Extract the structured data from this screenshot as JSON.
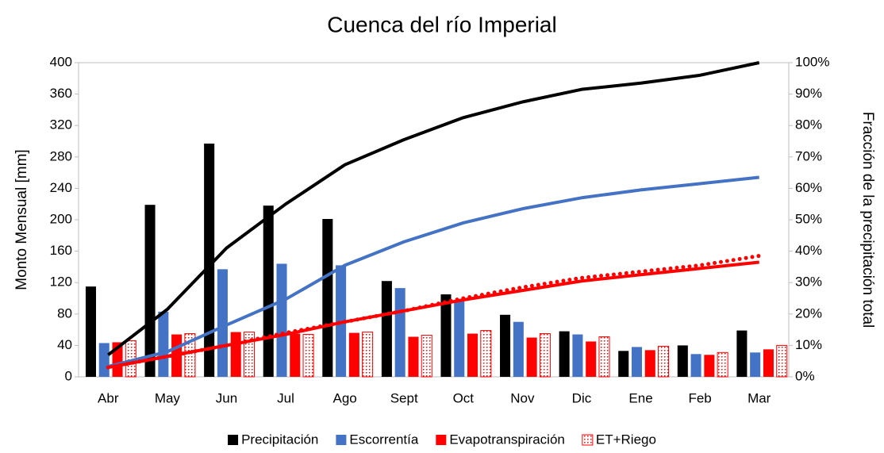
{
  "chart_data": {
    "type": "bar",
    "title": "Cuenca del río Imperial",
    "y_label": "Monto Mensual [mm]",
    "y2_label": "Fracción de la precipitación total",
    "categories": [
      "Abr",
      "May",
      "Jun",
      "Jul",
      "Ago",
      "Sept",
      "Oct",
      "Nov",
      "Dic",
      "Ene",
      "Feb",
      "Mar"
    ],
    "series": [
      {
        "name": "Precipitación",
        "color": "#000000",
        "values": [
          115,
          219,
          297,
          218,
          201,
          122,
          105,
          79,
          58,
          33,
          40,
          59
        ]
      },
      {
        "name": "Escorrentía",
        "color": "#4472c4",
        "values": [
          43,
          83,
          137,
          144,
          142,
          113,
          97,
          70,
          54,
          38,
          29,
          31
        ]
      },
      {
        "name": "Evapotranspiración",
        "color": "#ff0000",
        "values": [
          44,
          54,
          57,
          55,
          56,
          51,
          55,
          50,
          45,
          34,
          28,
          35
        ]
      },
      {
        "name": "ET+Riego",
        "color": "#ff0000",
        "pattern": "dots",
        "values": [
          46,
          55,
          57,
          54,
          57,
          53,
          59,
          55,
          51,
          39,
          31,
          40
        ]
      }
    ],
    "lines": [
      {
        "color": "#000000",
        "axis": "y2",
        "style": "solid",
        "values": [
          7,
          21.5,
          41,
          55,
          67.5,
          75.5,
          82.5,
          87.5,
          91.5,
          93.5,
          96,
          100
        ]
      },
      {
        "color": "#4472c4",
        "axis": "y2",
        "style": "solid",
        "values": [
          3.3,
          8,
          16.5,
          24.7,
          35.5,
          43,
          49,
          53.5,
          57,
          59.5,
          61.5,
          63.5
        ]
      },
      {
        "color": "#ff0000",
        "axis": "y2",
        "style": "solid",
        "values": [
          3,
          6.5,
          10,
          13.5,
          17.5,
          21,
          24.5,
          27.5,
          30.5,
          32.5,
          34.5,
          36.5
        ]
      },
      {
        "color": "#ff0000",
        "axis": "y2",
        "style": "dotted",
        "values": [
          3,
          6.5,
          10,
          14,
          17.5,
          21,
          25,
          28.5,
          31.5,
          33.5,
          35.5,
          38.5
        ]
      }
    ],
    "ylim": [
      0,
      400
    ],
    "yticks": [
      0,
      40,
      80,
      120,
      160,
      200,
      240,
      280,
      320,
      360,
      400
    ],
    "y2lim": [
      0,
      100
    ],
    "y2ticks": [
      {
        "value": 0,
        "label": "0%"
      },
      {
        "value": 10,
        "label": "10%"
      },
      {
        "value": 20,
        "label": "20%"
      },
      {
        "value": 30,
        "label": "30%"
      },
      {
        "value": 40,
        "label": "40%"
      },
      {
        "value": 50,
        "label": "50%"
      },
      {
        "value": 60,
        "label": "60%"
      },
      {
        "value": 70,
        "label": "70%"
      },
      {
        "value": 80,
        "label": "80%"
      },
      {
        "value": 90,
        "label": "90%"
      },
      {
        "value": 100,
        "label": "100%"
      }
    ],
    "grid": false,
    "legend": "bottom"
  }
}
